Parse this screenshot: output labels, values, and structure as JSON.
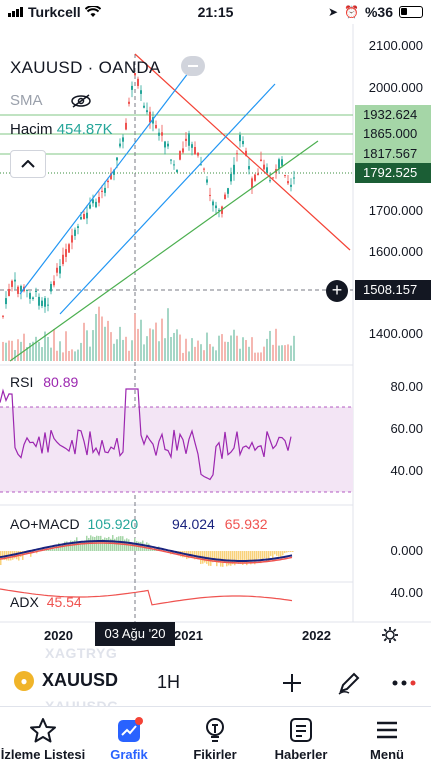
{
  "status_bar": {
    "carrier": "Turkcell",
    "time": "21:15",
    "battery": "%36"
  },
  "chart": {
    "symbol_title": "XAUUSD · OANDA",
    "sma_label": "SMA",
    "volume_label": "Hacim",
    "volume_value": "454.87K",
    "price_scale": [
      "2100.000",
      "2000.000",
      "1700.000",
      "1600.000",
      "1400.000"
    ],
    "price_labels": {
      "level1": "1932.624",
      "level2": "1865.000",
      "level3": "1817.567",
      "current": "1792.525",
      "crosshair": "1508.157"
    },
    "colors": {
      "up": "#26a69a",
      "down": "#ef5350",
      "channel": "#2196f3",
      "trend_support": "#4caf50",
      "trend_resistance": "#f44336",
      "rsi_line": "#9c27b0",
      "rsi_band": "#f3e5f5"
    }
  },
  "rsi": {
    "title": "RSI",
    "value": "80.89",
    "scale": [
      "80.00",
      "60.00",
      "40.00"
    ]
  },
  "macd": {
    "title": "AO+MACD",
    "v1": "105.920",
    "v2": "94.024",
    "v3": "65.932",
    "scale": "0.000"
  },
  "adx": {
    "title": "ADX",
    "value": "45.54",
    "scale": "40.00"
  },
  "time_axis": {
    "labels": [
      "2020",
      "2021",
      "2022"
    ],
    "cursor_date": "03 Ağu '20"
  },
  "toolbar": {
    "symbol": "XAUUSD",
    "interval": "1H",
    "ghost_top": "XAGTRYG",
    "ghost_bottom": "XAUUSDG"
  },
  "tabs": [
    {
      "label": "İzleme Listesi",
      "icon": "star-icon"
    },
    {
      "label": "Grafik",
      "icon": "chart-icon"
    },
    {
      "label": "Fikirler",
      "icon": "lightbulb-icon"
    },
    {
      "label": "Haberler",
      "icon": "news-icon"
    },
    {
      "label": "Menü",
      "icon": "hamburger-icon"
    }
  ]
}
